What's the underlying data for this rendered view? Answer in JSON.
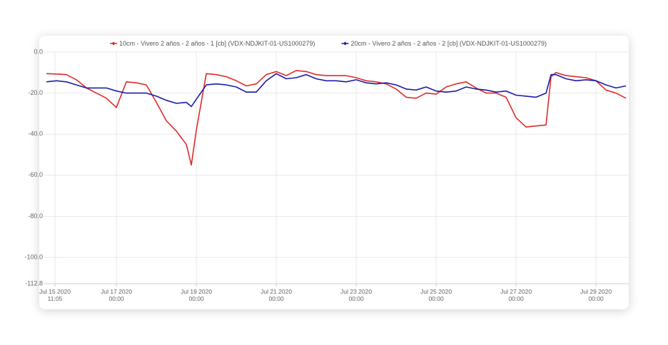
{
  "chart_data": {
    "type": "line",
    "legend_position": "top",
    "grid": true,
    "x": [
      "2020-07-15T06:00",
      "2020-07-15T12:00",
      "2020-07-15T18:00",
      "2020-07-16T00:00",
      "2020-07-16T06:00",
      "2020-07-16T12:00",
      "2020-07-16T18:00",
      "2020-07-17T00:00",
      "2020-07-17T06:00",
      "2020-07-17T12:00",
      "2020-07-17T18:00",
      "2020-07-18T00:00",
      "2020-07-18T06:00",
      "2020-07-18T12:00",
      "2020-07-18T18:00",
      "2020-07-18T21:00",
      "2020-07-19T00:00",
      "2020-07-19T06:00",
      "2020-07-19T12:00",
      "2020-07-19T18:00",
      "2020-07-20T00:00",
      "2020-07-20T06:00",
      "2020-07-20T12:00",
      "2020-07-20T18:00",
      "2020-07-21T00:00",
      "2020-07-21T06:00",
      "2020-07-21T12:00",
      "2020-07-21T18:00",
      "2020-07-22T00:00",
      "2020-07-22T06:00",
      "2020-07-22T12:00",
      "2020-07-22T18:00",
      "2020-07-23T00:00",
      "2020-07-23T06:00",
      "2020-07-23T12:00",
      "2020-07-23T18:00",
      "2020-07-24T00:00",
      "2020-07-24T06:00",
      "2020-07-24T12:00",
      "2020-07-24T18:00",
      "2020-07-25T00:00",
      "2020-07-25T06:00",
      "2020-07-25T12:00",
      "2020-07-25T18:00",
      "2020-07-26T00:00",
      "2020-07-26T06:00",
      "2020-07-26T12:00",
      "2020-07-26T18:00",
      "2020-07-27T00:00",
      "2020-07-27T06:00",
      "2020-07-27T12:00",
      "2020-07-27T18:00",
      "2020-07-27T21:00",
      "2020-07-28T00:00",
      "2020-07-28T06:00",
      "2020-07-28T12:00",
      "2020-07-28T18:00",
      "2020-07-29T00:00",
      "2020-07-29T06:00",
      "2020-07-29T12:00",
      "2020-07-29T18:00"
    ],
    "series": [
      {
        "name": "10cm - Vivero 2 años - 2 años - 1 [cb] (VDX-NDJKIT-01-US1000279)",
        "color": "#dd2b2b",
        "values": [
          -10.5,
          -10.7,
          -11,
          -13.5,
          -17.5,
          -20,
          -22.5,
          -27,
          -14.5,
          -15,
          -16,
          -24.5,
          -33.5,
          -38.5,
          -45,
          -55,
          -38,
          -10.5,
          -11,
          -12,
          -14,
          -16.5,
          -15.5,
          -11,
          -9.5,
          -11.5,
          -9,
          -9.5,
          -11,
          -11.5,
          -11.5,
          -11.5,
          -12.5,
          -14,
          -14.5,
          -15.5,
          -18,
          -22,
          -22.5,
          -20,
          -20.5,
          -17,
          -15.5,
          -14.5,
          -17.5,
          -20,
          -20,
          -22,
          -32,
          -36.5,
          -36,
          -35.5,
          -12,
          -10,
          -11.5,
          -12,
          -12.5,
          -14,
          -18.5,
          -20,
          -22.5
        ]
      },
      {
        "name": "20cm - Vivero 2 años - 2 años - 2 [cb] (VDX-NDJKIT-01-US1000279)",
        "color": "#1c1ca8",
        "values": [
          -14.5,
          -14,
          -14.5,
          -16,
          -17.5,
          -17.5,
          -17.5,
          -19,
          -20,
          -20,
          -20,
          -21.5,
          -23.5,
          -25,
          -24.5,
          -26.5,
          -23,
          -16,
          -15.5,
          -16,
          -17,
          -19.5,
          -19.5,
          -14,
          -10.5,
          -13,
          -12.5,
          -11,
          -13,
          -14,
          -14,
          -14.5,
          -13.5,
          -15,
          -15.5,
          -15,
          -16,
          -18,
          -18.5,
          -17,
          -19,
          -19.5,
          -19,
          -17,
          -18,
          -18.5,
          -19.5,
          -19,
          -21,
          -21.5,
          -22,
          -20,
          -11,
          -11,
          -13,
          -14,
          -13.5,
          -14,
          -16,
          -17.5,
          -16.5
        ]
      }
    ],
    "xlim": [
      "2020-07-15T04:40",
      "2020-07-29T19:40"
    ],
    "xticks": [
      {
        "value": "2020-07-15T11:05",
        "label": "Jul 15 2020\n11:05"
      },
      {
        "value": "2020-07-17T00:00",
        "label": "Jul 17 2020\n00:00"
      },
      {
        "value": "2020-07-19T00:00",
        "label": "Jul 19 2020\n00:00"
      },
      {
        "value": "2020-07-21T00:00",
        "label": "Jul 21 2020\n00:00"
      },
      {
        "value": "2020-07-23T00:00",
        "label": "Jul 23 2020\n00:00"
      },
      {
        "value": "2020-07-25T00:00",
        "label": "Jul 25 2020\n00:00"
      },
      {
        "value": "2020-07-27T00:00",
        "label": "Jul 27 2020\n00:00"
      },
      {
        "value": "2020-07-29T00:00",
        "label": "Jul 29 2020\n00:00"
      }
    ],
    "ylim": [
      -112.8,
      0
    ],
    "yticks": [
      {
        "value": 0,
        "label": "0.0"
      },
      {
        "value": -20,
        "label": "-20.0"
      },
      {
        "value": -40,
        "label": "-40.0"
      },
      {
        "value": -60,
        "label": "-60.0"
      },
      {
        "value": -80,
        "label": "-80.0"
      },
      {
        "value": -100,
        "label": "-100.0"
      },
      {
        "value": -112.8,
        "label": "-112.8"
      }
    ]
  }
}
